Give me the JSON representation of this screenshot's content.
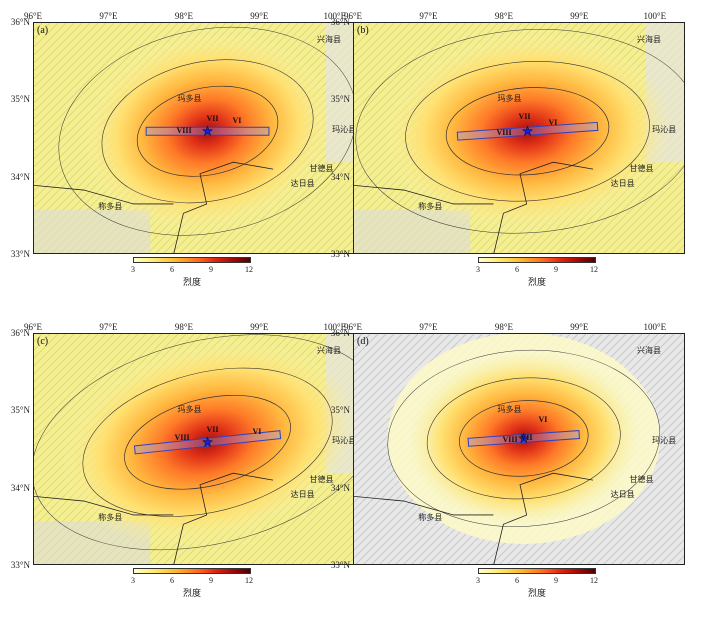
{
  "axes": {
    "lon_ticks": [
      "96°E",
      "97°E",
      "98°E",
      "99°E",
      "100°E"
    ],
    "lat_ticks": [
      "36°N",
      "35°N",
      "34°N",
      "33°N"
    ]
  },
  "towns": {
    "xinghai": "兴海县",
    "maduo": "玛多县",
    "maqin": "玛沁县",
    "gande": "甘德县",
    "dari": "达日县",
    "chengduo": "称多县"
  },
  "colorbar": {
    "ticks": [
      "3",
      "6",
      "9",
      "12"
    ],
    "title": "烈度",
    "colors": [
      "#ffffd0",
      "#fff080",
      "#ffd040",
      "#ffa020",
      "#ff6020",
      "#e02010",
      "#a00808",
      "#500000"
    ]
  },
  "panels": [
    {
      "label": "(a)",
      "intensities": [
        "VIII",
        "VII",
        "VI"
      ]
    },
    {
      "label": "(b)",
      "intensities": [
        "VIII",
        "VII",
        "VI"
      ]
    },
    {
      "label": "(c)",
      "intensities": [
        "VIII",
        "VII",
        "VI"
      ]
    },
    {
      "label": "(d)",
      "intensities": [
        "VIII",
        "VII",
        "VI"
      ]
    }
  ]
}
